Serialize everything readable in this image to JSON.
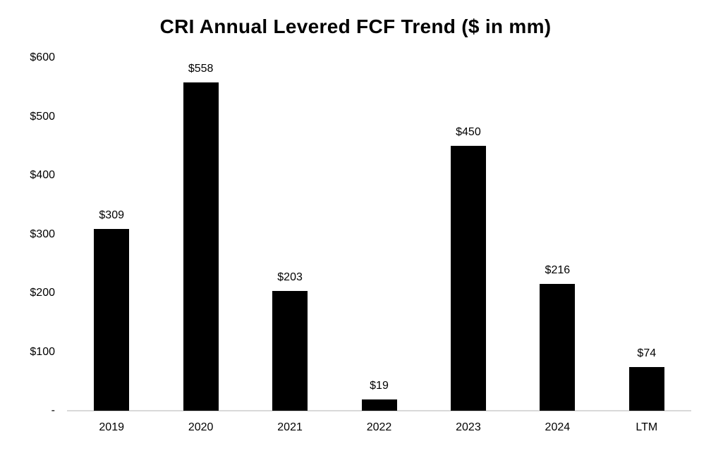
{
  "page": {
    "background_color": "#ffffff"
  },
  "chart_data": {
    "type": "bar",
    "title": "CRI Annual Levered FCF Trend ($ in mm)",
    "categories": [
      "2019",
      "2020",
      "2021",
      "2022",
      "2023",
      "2024",
      "LTM"
    ],
    "values": [
      309,
      558,
      203,
      19,
      450,
      216,
      74
    ],
    "value_labels": [
      "$309",
      "$558",
      "$203",
      "$19",
      "$450",
      "$216",
      "$74"
    ],
    "y_ticks": [
      {
        "value": 600,
        "label": "$600"
      },
      {
        "value": 500,
        "label": "$500"
      },
      {
        "value": 400,
        "label": "$400"
      },
      {
        "value": 300,
        "label": "$300"
      },
      {
        "value": 200,
        "label": "$200"
      },
      {
        "value": 100,
        "label": "$100"
      },
      {
        "value": 0,
        "label": "-"
      }
    ],
    "xlabel": "",
    "ylabel": "",
    "ylim": [
      0,
      600
    ],
    "grid": false,
    "legend": false,
    "bar_color": "#000000",
    "axis_line_color": "#d9d9d9",
    "text_color": "#000000"
  }
}
